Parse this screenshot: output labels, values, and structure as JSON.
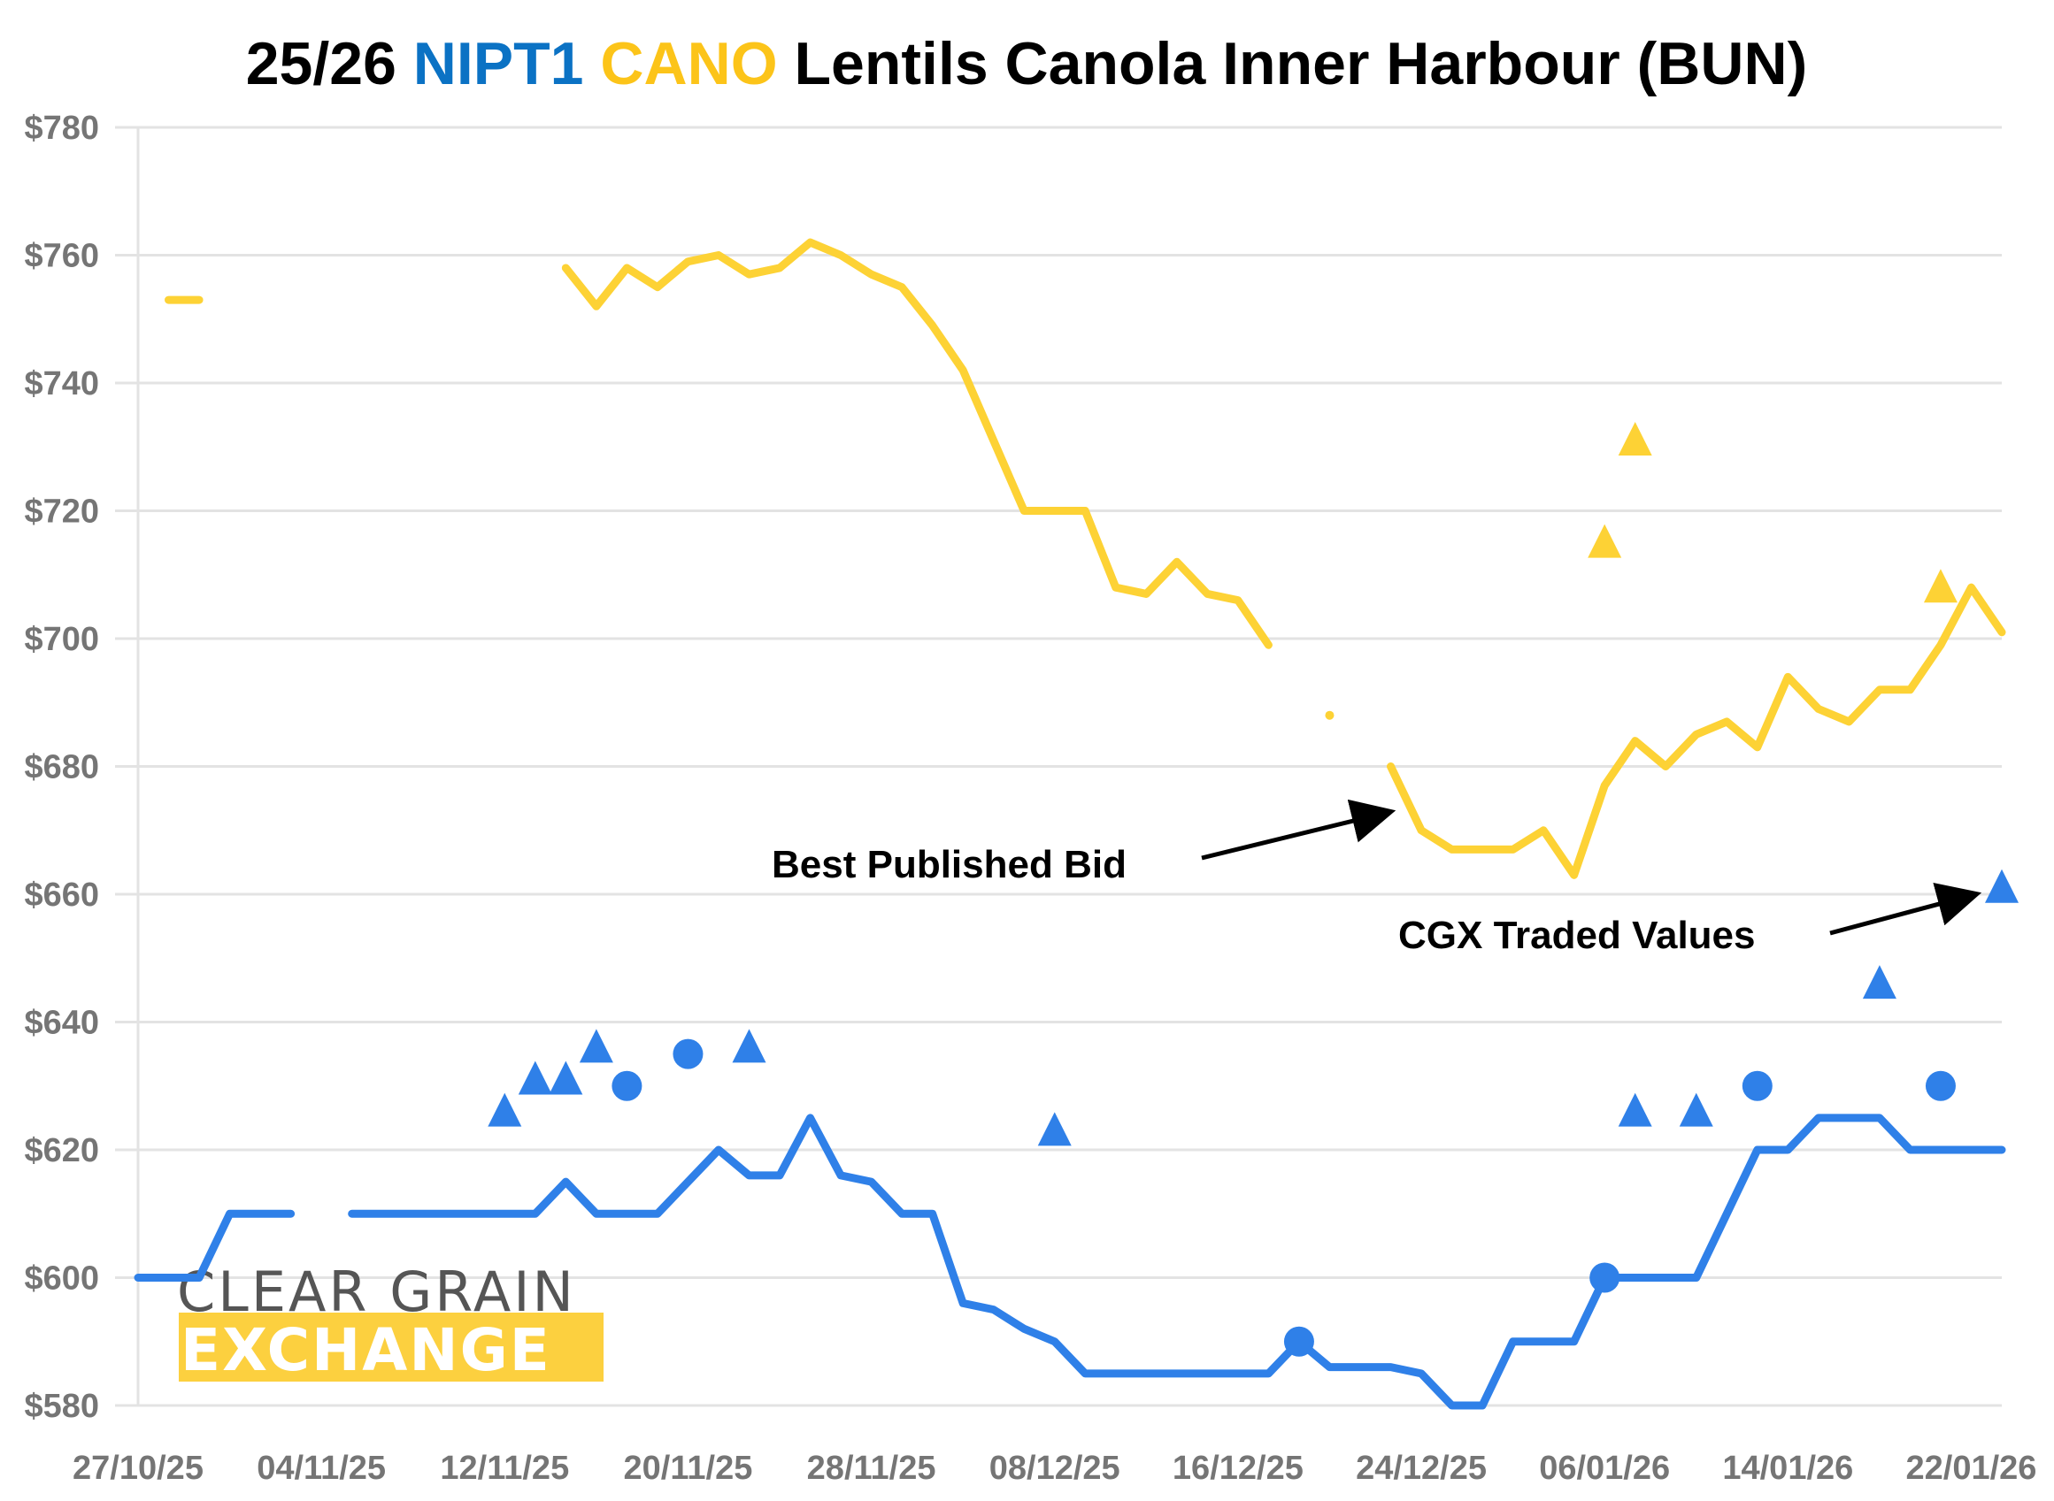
{
  "chart_data": {
    "type": "line",
    "title": {
      "parts": [
        {
          "text": "25/26 ",
          "color": "#000000"
        },
        {
          "text": "NIPT1",
          "color": "#0B72C4"
        },
        {
          "text": " ",
          "color": "#000000"
        },
        {
          "text": "CANO",
          "color": "#FCC419"
        },
        {
          "text": " Lentils Canola Inner Harbour (BUN)",
          "color": "#000000"
        }
      ],
      "full": "25/26 NIPT1 CANO Lentils Canola Inner Harbour (BUN)"
    },
    "xlabel": "",
    "ylabel": "",
    "ylim": [
      580,
      780
    ],
    "yticks": [
      580,
      600,
      620,
      640,
      660,
      680,
      700,
      720,
      740,
      760,
      780
    ],
    "ytick_prefix": "$",
    "x_count": 62,
    "xtick_labels": [
      {
        "index": 0,
        "label": "27/10/25"
      },
      {
        "index": 6,
        "label": "04/11/25"
      },
      {
        "index": 12,
        "label": "12/11/25"
      },
      {
        "index": 18,
        "label": "20/11/25"
      },
      {
        "index": 24,
        "label": "28/11/25"
      },
      {
        "index": 30,
        "label": "08/12/25"
      },
      {
        "index": 36,
        "label": "16/12/25"
      },
      {
        "index": 42,
        "label": "24/12/25"
      },
      {
        "index": 48,
        "label": "06/01/26"
      },
      {
        "index": 54,
        "label": "14/01/26"
      },
      {
        "index": 60,
        "label": "22/01/26"
      }
    ],
    "grid": true,
    "legend": "none",
    "series": [
      {
        "name": "CANO Best Published Bid",
        "color": "#FDD235",
        "kind": "line",
        "values": [
          null,
          753,
          753,
          null,
          null,
          null,
          null,
          null,
          null,
          null,
          null,
          null,
          null,
          null,
          758,
          752,
          758,
          755,
          759,
          760,
          757,
          758,
          762,
          760,
          757,
          755,
          749,
          742,
          731,
          720,
          720,
          720,
          708,
          707,
          712,
          707,
          706,
          699,
          null,
          688,
          null,
          680,
          670,
          667,
          667,
          667,
          670,
          663,
          677,
          684,
          680,
          685,
          687,
          683,
          694,
          689,
          687,
          692,
          692,
          699,
          708,
          701
        ]
      },
      {
        "name": "NIPT1 Best Published Bid",
        "color": "#2F80E8",
        "kind": "line",
        "values": [
          600,
          600,
          600,
          610,
          610,
          610,
          null,
          610,
          610,
          610,
          610,
          610,
          610,
          610,
          615,
          610,
          610,
          610,
          615,
          620,
          616,
          616,
          625,
          616,
          615,
          610,
          610,
          596,
          595,
          592,
          590,
          585,
          585,
          585,
          585,
          585,
          585,
          585,
          590,
          586,
          586,
          586,
          585,
          580,
          580,
          590,
          590,
          590,
          600,
          600,
          600,
          600,
          610,
          620,
          620,
          625,
          625,
          625,
          620,
          620,
          620,
          620
        ]
      },
      {
        "name": "NIPT1 CGX Traded Values",
        "color": "#2F80E8",
        "kind": "markers",
        "points": [
          {
            "index": 12,
            "value": 626,
            "marker": "triangle"
          },
          {
            "index": 13,
            "value": 631,
            "marker": "triangle"
          },
          {
            "index": 14,
            "value": 631,
            "marker": "triangle"
          },
          {
            "index": 15,
            "value": 636,
            "marker": "triangle"
          },
          {
            "index": 16,
            "value": 630,
            "marker": "circle"
          },
          {
            "index": 18,
            "value": 635,
            "marker": "circle"
          },
          {
            "index": 20,
            "value": 636,
            "marker": "triangle"
          },
          {
            "index": 30,
            "value": 623,
            "marker": "triangle"
          },
          {
            "index": 38,
            "value": 590,
            "marker": "circle"
          },
          {
            "index": 48,
            "value": 600,
            "marker": "circle"
          },
          {
            "index": 49,
            "value": 626,
            "marker": "triangle"
          },
          {
            "index": 51,
            "value": 626,
            "marker": "triangle"
          },
          {
            "index": 53,
            "value": 630,
            "marker": "circle"
          },
          {
            "index": 57,
            "value": 646,
            "marker": "triangle"
          },
          {
            "index": 59,
            "value": 630,
            "marker": "circle"
          },
          {
            "index": 61,
            "value": 661,
            "marker": "triangle"
          }
        ]
      },
      {
        "name": "CANO CGX Traded Values",
        "color": "#FDD235",
        "kind": "markers",
        "points": [
          {
            "index": 48,
            "value": 715,
            "marker": "triangle"
          },
          {
            "index": 49,
            "value": 731,
            "marker": "triangle"
          },
          {
            "index": 59,
            "value": 708,
            "marker": "triangle"
          }
        ]
      }
    ],
    "annotations": [
      {
        "text": "Best Published Bid",
        "points_to": {
          "index": 41,
          "value": 675
        }
      },
      {
        "text": "CGX Traded Values",
        "points_to": {
          "index": 60,
          "value": 661
        }
      }
    ]
  },
  "watermark": {
    "line1": "CLEAR GRAIN",
    "line2": "EXCHANGE",
    "line1_color": "#555555",
    "line2_bg": "#FCD03F"
  }
}
